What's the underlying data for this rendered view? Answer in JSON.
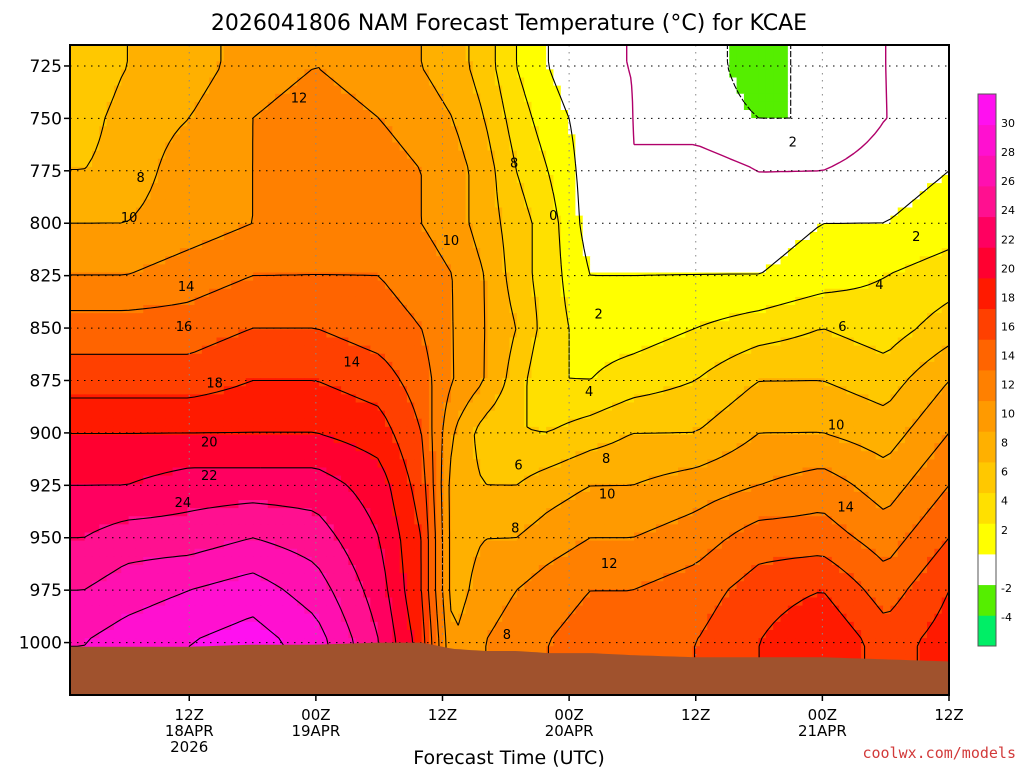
{
  "chart_data": {
    "type": "heatmap",
    "title": "2026041806 NAM Forecast Temperature (°C) for KCAE",
    "xlabel": "Forecast Time (UTC)",
    "ylabel": "",
    "credit": "coolwx.com/models",
    "y_axis": {
      "unit": "hPa",
      "reversed": true,
      "range": [
        1025,
        715
      ],
      "ticks": [
        725,
        750,
        775,
        800,
        825,
        850,
        875,
        900,
        925,
        950,
        975,
        1000
      ]
    },
    "x_axis": {
      "unit": "forecast hour",
      "range": [
        -5.3,
        78
      ],
      "ticks": [
        {
          "hour": 6,
          "lines": [
            "12Z",
            "18APR",
            "2026"
          ]
        },
        {
          "hour": 18,
          "lines": [
            "00Z",
            "19APR"
          ]
        },
        {
          "hour": 30,
          "lines": [
            "12Z"
          ]
        },
        {
          "hour": 42,
          "lines": [
            "00Z",
            "20APR"
          ]
        },
        {
          "hour": 54,
          "lines": [
            "12Z"
          ]
        },
        {
          "hour": 66,
          "lines": [
            "00Z",
            "21APR"
          ]
        },
        {
          "hour": 78,
          "lines": [
            "12Z"
          ]
        }
      ],
      "grid": true
    },
    "colorbar": {
      "ticks": [
        -4,
        -2,
        2,
        4,
        6,
        8,
        10,
        12,
        14,
        16,
        18,
        20,
        22,
        24,
        26,
        28,
        30
      ],
      "bins": [
        {
          "from": -6,
          "to": -4,
          "color": "#00ee66"
        },
        {
          "from": -4,
          "to": -2,
          "color": "#55ee00"
        },
        {
          "from": -2,
          "to": 2,
          "color": "#ffffff"
        },
        {
          "from": 2,
          "to": 4,
          "color": "#ffff00"
        },
        {
          "from": 4,
          "to": 6,
          "color": "#ffe000"
        },
        {
          "from": 6,
          "to": 8,
          "color": "#ffc800"
        },
        {
          "from": 8,
          "to": 10,
          "color": "#ffb000"
        },
        {
          "from": 10,
          "to": 12,
          "color": "#ff9a00"
        },
        {
          "from": 12,
          "to": 14,
          "color": "#ff8000"
        },
        {
          "from": 14,
          "to": 16,
          "color": "#ff6400"
        },
        {
          "from": 16,
          "to": 18,
          "color": "#ff4000"
        },
        {
          "from": 18,
          "to": 20,
          "color": "#ff1a00"
        },
        {
          "from": 20,
          "to": 22,
          "color": "#ff0030"
        },
        {
          "from": 22,
          "to": 24,
          "color": "#ff0060"
        },
        {
          "from": 24,
          "to": 26,
          "color": "#ff1090"
        },
        {
          "from": 26,
          "to": 28,
          "color": "#ff10b0"
        },
        {
          "from": 28,
          "to": 30,
          "color": "#ff10d0"
        },
        {
          "from": 30,
          "to": 32,
          "color": "#ff10f0"
        }
      ]
    },
    "time_hours": [
      -4,
      0,
      6,
      12,
      18,
      24,
      28,
      31,
      34,
      37,
      40,
      44,
      48,
      54,
      60,
      66,
      72,
      78
    ],
    "pressure_levels": [
      725,
      750,
      775,
      800,
      825,
      850,
      875,
      900,
      925,
      950,
      975,
      1000
    ],
    "temperature_c": [
      [
        6,
        8,
        9,
        11,
        12,
        11,
        10,
        9,
        7,
        4,
        2,
        0,
        0,
        -1,
        -3,
        -1,
        0,
        1
      ],
      [
        7,
        9,
        10,
        12,
        13,
        12,
        11,
        10,
        8,
        5,
        3,
        1,
        0,
        -1,
        -2,
        -2,
        0,
        1
      ],
      [
        8,
        9,
        11,
        12,
        13,
        13,
        12,
        11,
        9,
        6,
        4,
        1,
        0,
        1,
        0,
        0,
        1,
        2
      ],
      [
        10,
        10,
        11,
        12,
        13,
        13,
        12,
        11,
        9,
        7,
        5,
        1,
        1,
        1,
        1,
        2,
        2,
        3
      ],
      [
        12,
        12,
        13,
        14,
        14,
        14,
        13,
        12,
        10,
        7,
        5,
        2,
        2,
        2,
        2,
        3,
        4,
        5
      ],
      [
        15,
        15,
        15,
        16,
        16,
        15,
        14,
        12,
        10,
        8,
        5,
        3,
        3,
        4,
        5,
        6,
        5,
        7
      ],
      [
        17,
        17,
        17,
        18,
        18,
        17,
        15,
        12,
        10,
        7,
        4,
        4,
        5,
        6,
        8,
        8,
        7,
        10
      ],
      [
        20,
        20,
        20,
        20,
        20,
        19,
        16,
        10,
        7,
        6,
        6,
        7,
        8,
        8,
        10,
        10,
        9,
        12
      ],
      [
        22,
        22,
        23,
        23,
        23,
        21,
        17,
        9,
        8,
        8,
        9,
        10,
        10,
        11,
        12,
        13,
        11,
        14
      ],
      [
        24,
        25,
        25,
        26,
        25,
        22,
        18,
        9,
        10,
        10,
        11,
        12,
        12,
        13,
        15,
        15,
        13,
        16
      ],
      [
        26,
        27,
        28,
        29,
        27,
        23,
        18,
        9,
        11,
        12,
        13,
        14,
        14,
        15,
        17,
        18,
        15,
        18
      ],
      [
        28,
        29,
        30,
        31,
        29,
        24,
        19,
        10,
        12,
        13,
        14,
        15,
        15,
        16,
        18,
        20,
        17,
        19
      ]
    ],
    "surface_pressure_hpa": [
      1002,
      1002,
      1002,
      1001,
      1001,
      1000,
      1000,
      1003,
      1004,
      1004,
      1005,
      1005,
      1006,
      1007,
      1007,
      1007,
      1008,
      1009
    ],
    "contour_interval": 2,
    "contour_labels": [
      {
        "value": "0",
        "hour": 40.5,
        "p": 796
      },
      {
        "value": "2",
        "hour": 63.2,
        "p": 761
      },
      {
        "value": "12",
        "hour": 16.4,
        "p": 740
      },
      {
        "value": "8",
        "hour": 1.4,
        "p": 778
      },
      {
        "value": "8",
        "hour": 36.8,
        "p": 771
      },
      {
        "value": "10",
        "hour": 0.3,
        "p": 797
      },
      {
        "value": "10",
        "hour": 30.8,
        "p": 808
      },
      {
        "value": "2",
        "hour": 74.9,
        "p": 806
      },
      {
        "value": "14",
        "hour": 5.7,
        "p": 830
      },
      {
        "value": "2",
        "hour": 44.8,
        "p": 843
      },
      {
        "value": "4",
        "hour": 71.4,
        "p": 829
      },
      {
        "value": "16",
        "hour": 5.5,
        "p": 849
      },
      {
        "value": "6",
        "hour": 67.9,
        "p": 849
      },
      {
        "value": "14",
        "hour": 21.4,
        "p": 866
      },
      {
        "value": "4",
        "hour": 43.9,
        "p": 880
      },
      {
        "value": "18",
        "hour": 8.4,
        "p": 876
      },
      {
        "value": "10",
        "hour": 67.3,
        "p": 896
      },
      {
        "value": "20",
        "hour": 7.9,
        "p": 904
      },
      {
        "value": "6",
        "hour": 37.2,
        "p": 915
      },
      {
        "value": "8",
        "hour": 45.5,
        "p": 912
      },
      {
        "value": "22",
        "hour": 7.9,
        "p": 920
      },
      {
        "value": "10",
        "hour": 45.6,
        "p": 929
      },
      {
        "value": "24",
        "hour": 5.4,
        "p": 933
      },
      {
        "value": "14",
        "hour": 68.2,
        "p": 935
      },
      {
        "value": "8",
        "hour": 36.9,
        "p": 945
      },
      {
        "value": "12",
        "hour": 45.8,
        "p": 962
      },
      {
        "value": "8",
        "hour": 36.1,
        "p": 996
      }
    ]
  }
}
